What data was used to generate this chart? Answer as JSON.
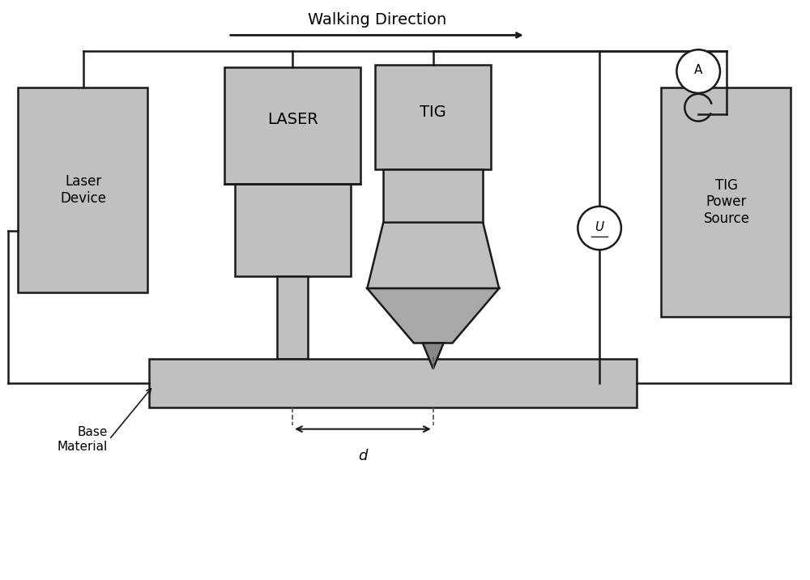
{
  "bg_color": "#ffffff",
  "box_fill": "#c0c0c0",
  "box_fill_dark": "#a8a8a8",
  "box_edge": "#1a1a1a",
  "line_color": "#1a1a1a",
  "title_text": "Walking Direction",
  "laser_label": "LASER",
  "tig_label": "TIG",
  "laser_device_label": "Laser\nDevice",
  "tig_power_label": "TIG\nPower\nSource",
  "base_material_label": "Base\nMaterial",
  "d_label": "d",
  "A_label": "A",
  "U_label": "U",
  "fig_w": 10.0,
  "fig_h": 7.16,
  "xlim": [
    0,
    10
  ],
  "ylim": [
    0,
    7.16
  ]
}
